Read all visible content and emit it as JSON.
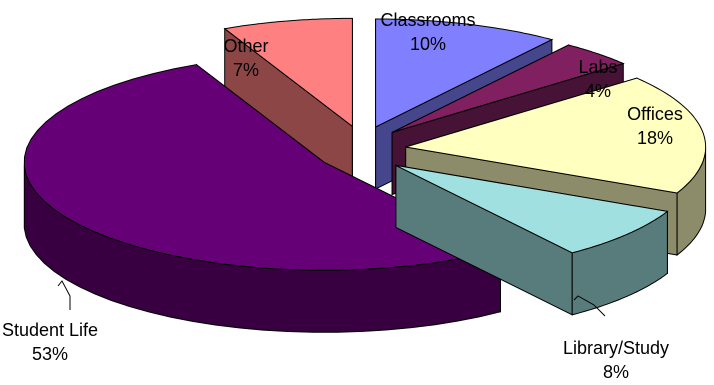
{
  "chart_data": {
    "type": "pie",
    "style": "3d-exploded",
    "title": "",
    "legend": "none",
    "labels_shown": "category name and percent",
    "slices": [
      {
        "label": "Classrooms",
        "pct_text": "10%",
        "value": 10,
        "color": "#8080ff"
      },
      {
        "label": "Labs",
        "pct_text": "4%",
        "value": 4,
        "color": "#802060"
      },
      {
        "label": "Offices",
        "pct_text": "18%",
        "value": 18,
        "color": "#ffffc0"
      },
      {
        "label": "Library/Study",
        "pct_text": "8%",
        "value": 8,
        "color": "#a0e0e0"
      },
      {
        "label": "Student Life",
        "pct_text": "53%",
        "value": 53,
        "color": "#660077"
      },
      {
        "label": "Other",
        "pct_text": "7%",
        "value": 7,
        "color": "#ff8080"
      }
    ]
  }
}
